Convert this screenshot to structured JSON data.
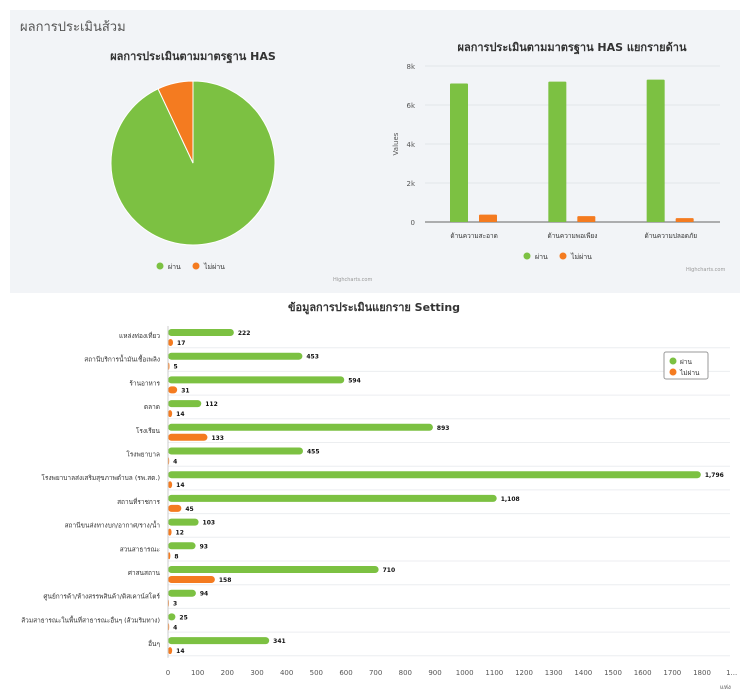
{
  "section_title": "ผลการประเมินส้วม",
  "colors": {
    "pass": "#7cc142",
    "fail": "#f47b20"
  },
  "credit": "Highcharts.com",
  "chart_data": [
    {
      "type": "pie",
      "title": "ผลการประเมินตามมาตรฐาน HAS",
      "legend": [
        "ผ่าน",
        "ไม่ผ่าน"
      ],
      "legend_placement": "bottom",
      "slices": [
        {
          "name": "ผ่าน",
          "value": 93
        },
        {
          "name": "ไม่ผ่าน",
          "value": 7
        }
      ]
    },
    {
      "type": "bar",
      "title": "ผลการประเมินตามมาตรฐาน HAS แยกรายด้าน",
      "ylabel": "Values",
      "ylim": [
        0,
        8000
      ],
      "yticks": [
        "0",
        "2k",
        "4k",
        "6k",
        "8k"
      ],
      "categories": [
        "ด้านความสะอาด",
        "ด้านความพอเพียง",
        "ด้านความปลอดภัย"
      ],
      "legend_placement": "bottom",
      "series": [
        {
          "name": "ผ่าน",
          "values": [
            7100,
            7200,
            7300
          ]
        },
        {
          "name": "ไม่ผ่าน",
          "values": [
            380,
            300,
            200
          ]
        }
      ]
    },
    {
      "type": "bar",
      "orientation": "horizontal",
      "title": "ข้อมูลการประเมินแยกราย Setting",
      "xlabel": "แห่ง",
      "xlim": [
        0,
        1800
      ],
      "xticks": [
        "0",
        "100",
        "200",
        "300",
        "400",
        "500",
        "600",
        "700",
        "800",
        "900",
        "1000",
        "1100",
        "1200",
        "1300",
        "1400",
        "1500",
        "1600",
        "1700",
        "1800",
        "1..."
      ],
      "legend_placement": "top-right",
      "categories": [
        "แหล่งท่องเที่ยว",
        "สถานีบริการน้ำมันเชื้อเพลิง",
        "ร้านอาหาร",
        "ตลาด",
        "โรงเรียน",
        "โรงพยาบาล",
        "โรงพยาบาลส่งเสริมสุขภาพตำบล (รพ.สต.)",
        "สถานที่ราชการ",
        "สถานีขนส่งทางบก/อากาศ/ราง/น้ำ",
        "สวนสาธารณะ",
        "ศาสนสถาน",
        "ศูนย์การค้า/ห้างสรรพสินค้า/ดิสเคาน์สโตร์",
        "ส้วมสาธารณะในพื้นที่สาธารณะอื่นๆ (ส้วมริมทาง)",
        "อื่นๆ"
      ],
      "series": [
        {
          "name": "ผ่าน",
          "values": [
            222,
            453,
            594,
            112,
            893,
            455,
            1796,
            1108,
            103,
            93,
            710,
            94,
            25,
            341
          ],
          "labels": [
            "222",
            "453",
            "594",
            "112",
            "893",
            "455",
            "1,796",
            "1,108",
            "103",
            "93",
            "710",
            "94",
            "25",
            "341"
          ]
        },
        {
          "name": "ไม่ผ่าน",
          "values": [
            17,
            5,
            31,
            14,
            133,
            4,
            14,
            45,
            12,
            8,
            158,
            3,
            4,
            14
          ],
          "labels": [
            "17",
            "5",
            "31",
            "14",
            "133",
            "4",
            "14",
            "45",
            "12",
            "8",
            "158",
            "3",
            "4",
            "14"
          ]
        }
      ]
    }
  ]
}
